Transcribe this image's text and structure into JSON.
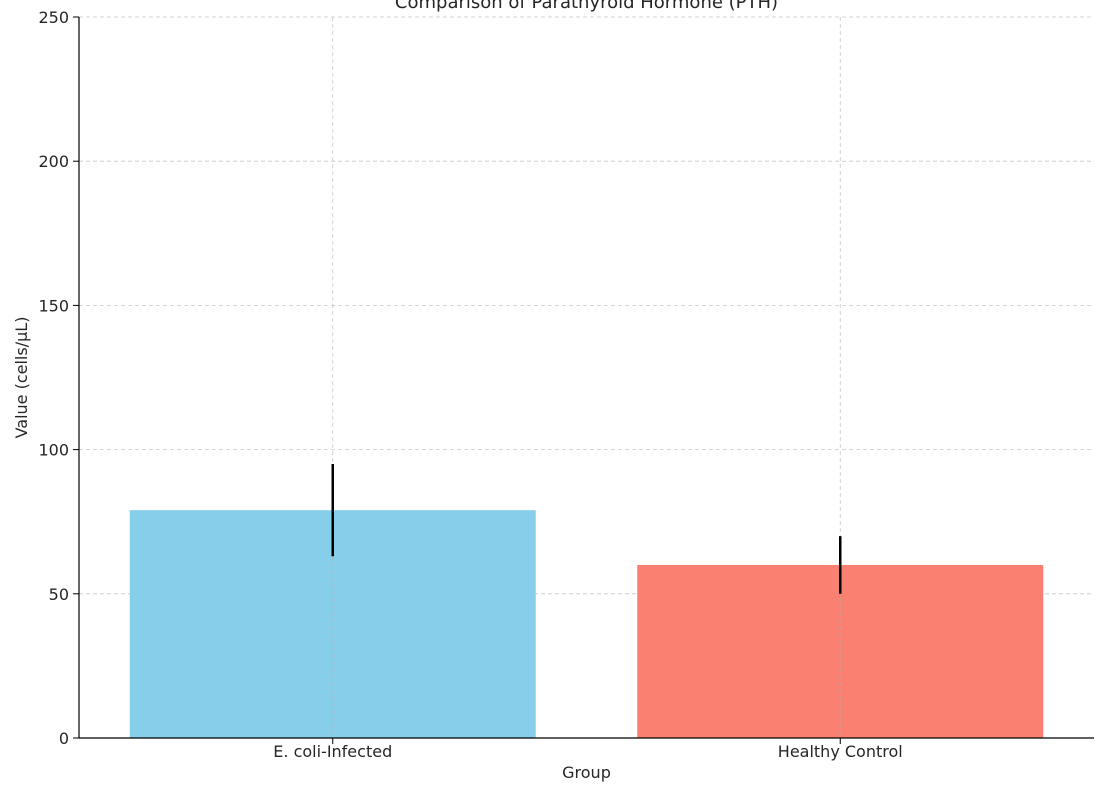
{
  "chart_data": {
    "type": "bar",
    "title": "Comparison of Parathyroid Hormone (PTH)",
    "xlabel": "Group",
    "ylabel": "Value (cells/µL)",
    "categories": [
      "E. coli-Infected",
      "Healthy Control"
    ],
    "values": [
      79,
      60
    ],
    "errors": [
      16,
      10
    ],
    "colors": [
      "#87CEEB",
      "#FA8072"
    ],
    "ylim": [
      0,
      250
    ],
    "yticks": [
      0,
      50,
      100,
      150,
      200,
      250
    ],
    "ytick_labels": [
      "0",
      "50",
      "100",
      "150",
      "200",
      "250"
    ],
    "grid": true
  }
}
